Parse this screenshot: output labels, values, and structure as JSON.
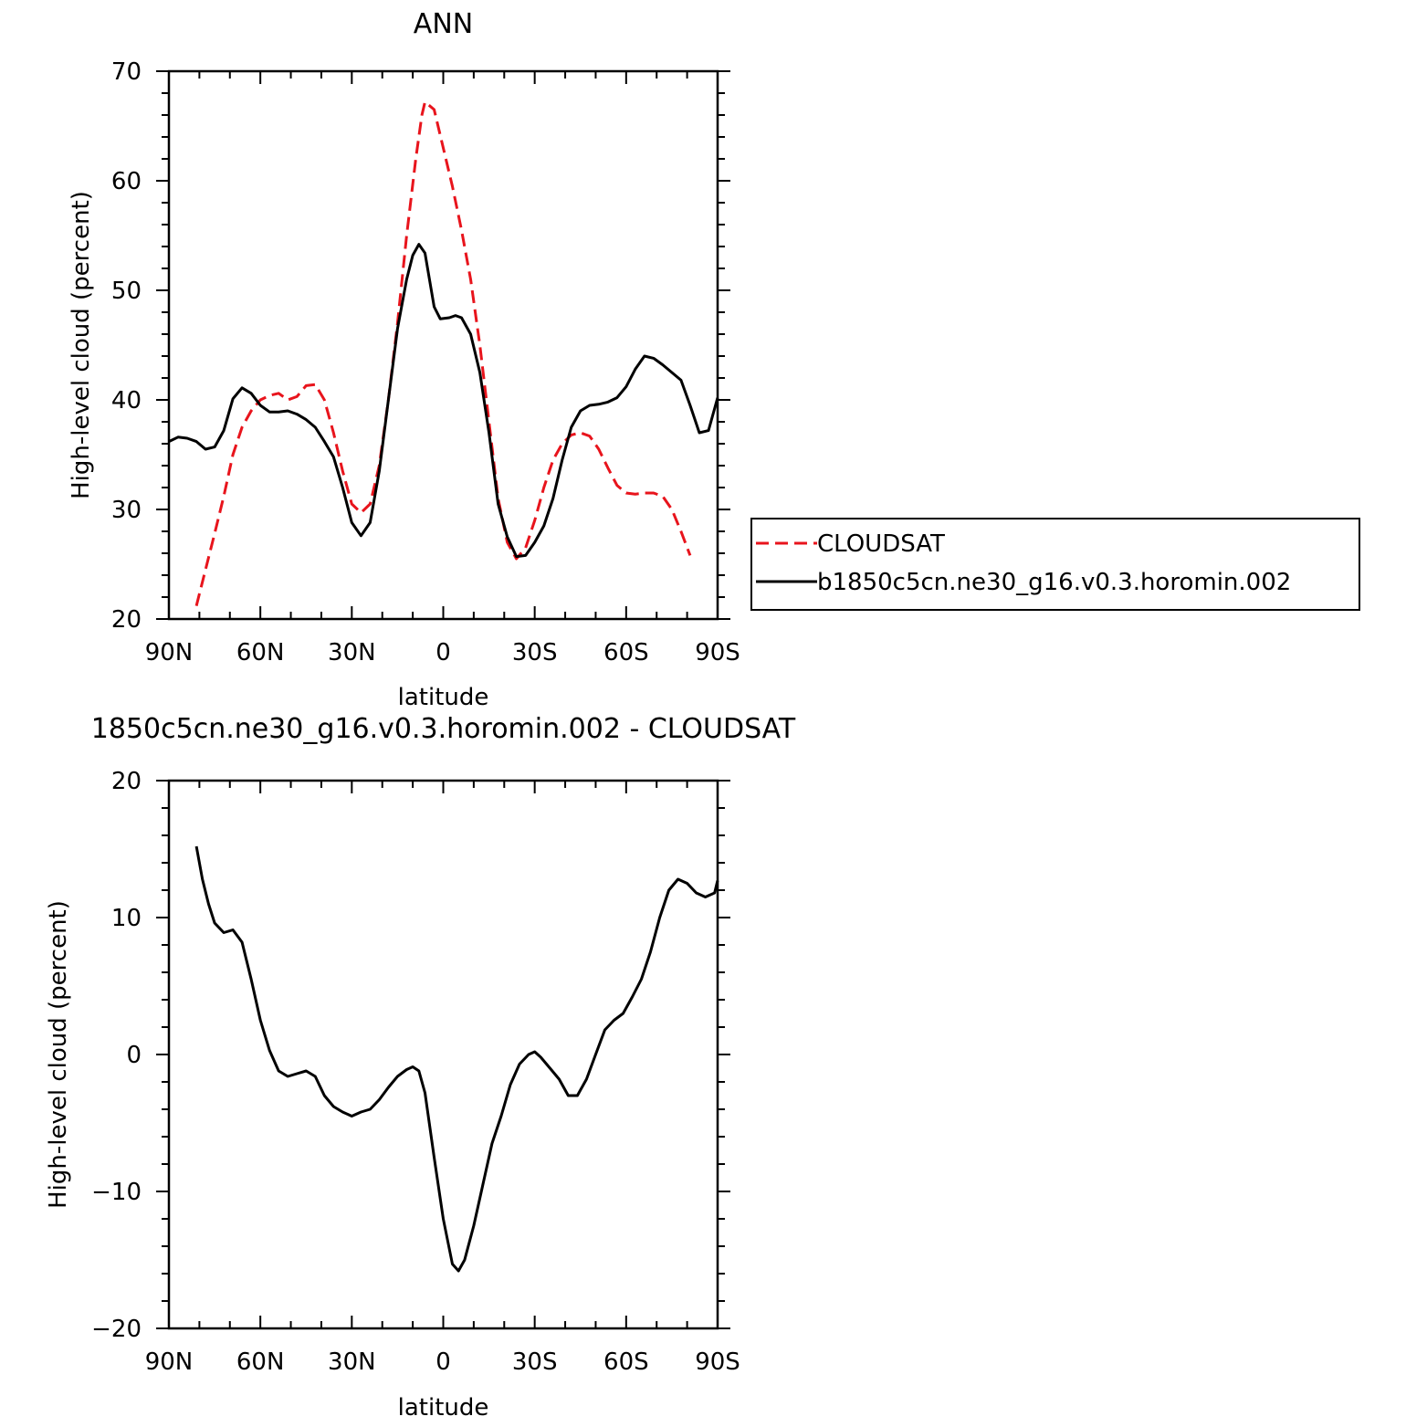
{
  "chart_data": [
    {
      "type": "line",
      "title": "ANN",
      "xlabel": "latitude",
      "ylabel": "High-level cloud (percent)",
      "xlim": [
        -90,
        90
      ],
      "ylim": [
        20,
        70
      ],
      "x_ticks": [
        {
          "value": -90,
          "label": "90N"
        },
        {
          "value": -60,
          "label": "60N"
        },
        {
          "value": -30,
          "label": "30N"
        },
        {
          "value": 0,
          "label": "0"
        },
        {
          "value": 30,
          "label": "30S"
        },
        {
          "value": 60,
          "label": "60S"
        },
        {
          "value": 90,
          "label": "90S"
        }
      ],
      "y_ticks": [
        {
          "value": 20,
          "label": "20"
        },
        {
          "value": 30,
          "label": "30"
        },
        {
          "value": 40,
          "label": "40"
        },
        {
          "value": 50,
          "label": "50"
        },
        {
          "value": 60,
          "label": "60"
        },
        {
          "value": 70,
          "label": "70"
        }
      ],
      "legend_position": "right",
      "series": [
        {
          "name": "CLOUDSAT",
          "color": "#e8141c",
          "style": "dashed",
          "points": [
            [
              -81,
              21.2
            ],
            [
              -78,
              24.5
            ],
            [
              -75,
              27.8
            ],
            [
              -72,
              31.2
            ],
            [
              -69,
              35.0
            ],
            [
              -66,
              37.5
            ],
            [
              -63,
              39.0
            ],
            [
              -60,
              40.0
            ],
            [
              -57,
              40.4
            ],
            [
              -54,
              40.6
            ],
            [
              -51,
              40.0
            ],
            [
              -48,
              40.3
            ],
            [
              -45,
              41.3
            ],
            [
              -42,
              41.4
            ],
            [
              -39,
              40.0
            ],
            [
              -36,
              37.0
            ],
            [
              -33,
              33.5
            ],
            [
              -30,
              30.5
            ],
            [
              -27,
              29.7
            ],
            [
              -24,
              30.5
            ],
            [
              -21,
              34.0
            ],
            [
              -18,
              40.0
            ],
            [
              -15,
              47.0
            ],
            [
              -12,
              55.0
            ],
            [
              -9,
              62.0
            ],
            [
              -7,
              66.0
            ],
            [
              -6,
              67.2
            ],
            [
              -3,
              66.5
            ],
            [
              0,
              63.0
            ],
            [
              3,
              59.5
            ],
            [
              6,
              55.5
            ],
            [
              9,
              51.0
            ],
            [
              12,
              45.0
            ],
            [
              15,
              38.0
            ],
            [
              18,
              31.0
            ],
            [
              21,
              27.0
            ],
            [
              24,
              25.5
            ],
            [
              27,
              26.5
            ],
            [
              30,
              29.0
            ],
            [
              33,
              32.0
            ],
            [
              36,
              34.5
            ],
            [
              39,
              36.0
            ],
            [
              42,
              36.8
            ],
            [
              45,
              37.0
            ],
            [
              48,
              36.7
            ],
            [
              51,
              35.5
            ],
            [
              54,
              33.8
            ],
            [
              57,
              32.2
            ],
            [
              60,
              31.5
            ],
            [
              63,
              31.4
            ],
            [
              66,
              31.5
            ],
            [
              69,
              31.5
            ],
            [
              72,
              31.2
            ],
            [
              75,
              30.0
            ],
            [
              78,
              28.0
            ],
            [
              81,
              25.8
            ]
          ]
        },
        {
          "name": "b1850c5cn.ne30_g16.v0.3.horomin.002",
          "color": "#000000",
          "style": "solid",
          "points": [
            [
              -90,
              36.2
            ],
            [
              -87,
              36.6
            ],
            [
              -84,
              36.5
            ],
            [
              -81,
              36.2
            ],
            [
              -78,
              35.5
            ],
            [
              -75,
              35.7
            ],
            [
              -72,
              37.2
            ],
            [
              -69,
              40.1
            ],
            [
              -66,
              41.1
            ],
            [
              -63,
              40.6
            ],
            [
              -60,
              39.5
            ],
            [
              -57,
              38.9
            ],
            [
              -54,
              38.9
            ],
            [
              -51,
              39.0
            ],
            [
              -48,
              38.7
            ],
            [
              -45,
              38.2
            ],
            [
              -42,
              37.5
            ],
            [
              -39,
              36.2
            ],
            [
              -36,
              34.8
            ],
            [
              -33,
              32.0
            ],
            [
              -30,
              28.8
            ],
            [
              -27,
              27.6
            ],
            [
              -24,
              28.8
            ],
            [
              -21,
              33.5
            ],
            [
              -18,
              40.0
            ],
            [
              -15,
              46.5
            ],
            [
              -12,
              51.0
            ],
            [
              -10,
              53.2
            ],
            [
              -8,
              54.2
            ],
            [
              -6,
              53.4
            ],
            [
              -3,
              48.5
            ],
            [
              -1,
              47.4
            ],
            [
              2,
              47.5
            ],
            [
              4,
              47.7
            ],
            [
              6,
              47.5
            ],
            [
              9,
              46.0
            ],
            [
              12,
              42.5
            ],
            [
              15,
              37.0
            ],
            [
              18,
              30.5
            ],
            [
              21,
              27.5
            ],
            [
              24,
              25.7
            ],
            [
              27,
              25.8
            ],
            [
              30,
              27.0
            ],
            [
              33,
              28.5
            ],
            [
              36,
              31.0
            ],
            [
              39,
              34.5
            ],
            [
              42,
              37.5
            ],
            [
              45,
              39.0
            ],
            [
              48,
              39.5
            ],
            [
              51,
              39.6
            ],
            [
              54,
              39.8
            ],
            [
              57,
              40.2
            ],
            [
              60,
              41.2
            ],
            [
              63,
              42.8
            ],
            [
              66,
              44.0
            ],
            [
              69,
              43.8
            ],
            [
              72,
              43.2
            ],
            [
              75,
              42.5
            ],
            [
              78,
              41.8
            ],
            [
              81,
              39.5
            ],
            [
              84,
              37.0
            ],
            [
              87,
              37.2
            ],
            [
              90,
              40.2
            ]
          ]
        }
      ]
    },
    {
      "type": "line",
      "title": "1850c5cn.ne30_g16.v0.3.horomin.002 - CLOUDSAT",
      "xlabel": "latitude",
      "ylabel": "High-level cloud (percent)",
      "xlim": [
        -90,
        90
      ],
      "ylim": [
        -20,
        20
      ],
      "x_ticks": [
        {
          "value": -90,
          "label": "90N"
        },
        {
          "value": -60,
          "label": "60N"
        },
        {
          "value": -30,
          "label": "30N"
        },
        {
          "value": 0,
          "label": "0"
        },
        {
          "value": 30,
          "label": "30S"
        },
        {
          "value": 60,
          "label": "60S"
        },
        {
          "value": 90,
          "label": "90S"
        }
      ],
      "y_ticks": [
        {
          "value": -20,
          "label": "−20"
        },
        {
          "value": -10,
          "label": "−10"
        },
        {
          "value": 0,
          "label": "0"
        },
        {
          "value": 10,
          "label": "10"
        },
        {
          "value": 20,
          "label": "20"
        }
      ],
      "series": [
        {
          "color": "#000000",
          "style": "solid",
          "points": [
            [
              -81,
              15.2
            ],
            [
              -79,
              12.8
            ],
            [
              -77,
              11.0
            ],
            [
              -75,
              9.6
            ],
            [
              -72,
              8.9
            ],
            [
              -69,
              9.1
            ],
            [
              -66,
              8.2
            ],
            [
              -63,
              5.5
            ],
            [
              -60,
              2.5
            ],
            [
              -57,
              0.3
            ],
            [
              -54,
              -1.2
            ],
            [
              -51,
              -1.6
            ],
            [
              -48,
              -1.4
            ],
            [
              -45,
              -1.2
            ],
            [
              -42,
              -1.6
            ],
            [
              -39,
              -3.0
            ],
            [
              -36,
              -3.8
            ],
            [
              -33,
              -4.2
            ],
            [
              -30,
              -4.5
            ],
            [
              -27,
              -4.2
            ],
            [
              -24,
              -4.0
            ],
            [
              -21,
              -3.3
            ],
            [
              -18,
              -2.4
            ],
            [
              -15,
              -1.6
            ],
            [
              -12,
              -1.1
            ],
            [
              -10,
              -0.9
            ],
            [
              -8,
              -1.2
            ],
            [
              -6,
              -2.8
            ],
            [
              -3,
              -7.5
            ],
            [
              0,
              -12.0
            ],
            [
              3,
              -15.3
            ],
            [
              5,
              -15.8
            ],
            [
              7,
              -15.0
            ],
            [
              10,
              -12.5
            ],
            [
              13,
              -9.5
            ],
            [
              16,
              -6.5
            ],
            [
              19,
              -4.5
            ],
            [
              22,
              -2.2
            ],
            [
              25,
              -0.7
            ],
            [
              28,
              0.0
            ],
            [
              30,
              0.2
            ],
            [
              32,
              -0.2
            ],
            [
              35,
              -1.0
            ],
            [
              38,
              -1.8
            ],
            [
              41,
              -3.0
            ],
            [
              44,
              -3.0
            ],
            [
              47,
              -1.8
            ],
            [
              50,
              0.0
            ],
            [
              53,
              1.8
            ],
            [
              56,
              2.5
            ],
            [
              59,
              3.0
            ],
            [
              62,
              4.2
            ],
            [
              65,
              5.5
            ],
            [
              68,
              7.5
            ],
            [
              71,
              10.0
            ],
            [
              74,
              12.0
            ],
            [
              77,
              12.8
            ],
            [
              80,
              12.5
            ],
            [
              83,
              11.8
            ],
            [
              86,
              11.5
            ],
            [
              89,
              11.8
            ],
            [
              90,
              12.7
            ]
          ]
        }
      ]
    }
  ]
}
